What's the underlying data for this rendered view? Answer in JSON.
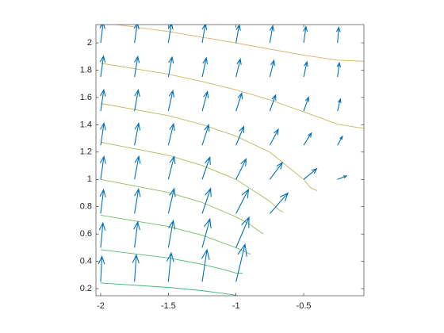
{
  "chart_data": {
    "type": "quiver",
    "xlim": [
      -2.035,
      -0.055
    ],
    "ylim": [
      0.148,
      2.134
    ],
    "xticks": [
      -2,
      -1.5,
      -1,
      -0.5
    ],
    "yticks": [
      0.2,
      0.4,
      0.6,
      0.8,
      1,
      1.2,
      1.4,
      1.6,
      1.8,
      2
    ],
    "box": true,
    "quiver": {
      "color": "#0072bd",
      "x": [
        -2,
        -2,
        -2,
        -2,
        -2,
        -2,
        -2,
        -2,
        -1.75,
        -1.75,
        -1.75,
        -1.75,
        -1.75,
        -1.75,
        -1.75,
        -1.75,
        -1.5,
        -1.5,
        -1.5,
        -1.5,
        -1.5,
        -1.5,
        -1.5,
        -1.5,
        -1.25,
        -1.25,
        -1.25,
        -1.25,
        -1.25,
        -1.25,
        -1.25,
        -1.25,
        -1,
        -1,
        -1,
        -1,
        -1,
        -1,
        -1,
        -1,
        -0.75,
        -0.75,
        -0.75,
        -0.75,
        -0.75,
        -0.75,
        -0.5,
        -0.5,
        -0.5,
        -0.5,
        -0.5,
        -0.25,
        -0.25,
        -0.25,
        -0.25,
        -0.25
      ],
      "y": [
        0.25,
        0.5,
        0.75,
        1,
        1.25,
        1.5,
        1.75,
        2,
        0.25,
        0.5,
        0.75,
        1,
        1.25,
        1.5,
        1.75,
        2,
        0.25,
        0.5,
        0.75,
        1,
        1.25,
        1.5,
        1.75,
        2,
        0.25,
        0.5,
        0.75,
        1,
        1.25,
        1.5,
        1.75,
        2,
        0.25,
        0.5,
        0.75,
        1,
        1.25,
        1.5,
        1.75,
        2,
        0.75,
        1,
        1.25,
        1.5,
        1.75,
        2,
        1,
        1.25,
        1.5,
        1.75,
        2,
        1,
        1.25,
        1.5,
        1.75,
        2
      ],
      "u": [
        0.061,
        0.111,
        0.144,
        0.16,
        0.162,
        0.154,
        0.14,
        0.125,
        0.09,
        0.159,
        0.2,
        0.212,
        0.205,
        0.186,
        0.163,
        0.14,
        0.14,
        0.24,
        0.284,
        0.284,
        0.258,
        0.222,
        0.186,
        0.154,
        0.237,
        0.381,
        0.415,
        0.381,
        0.32,
        0.258,
        0.205,
        0.162,
        0.443,
        0.64,
        0.614,
        0.5,
        0.381,
        0.284,
        0.212,
        0.16,
        0.889,
        0.614,
        0.415,
        0.284,
        0.2,
        0.144,
        0.64,
        0.381,
        0.24,
        0.159,
        0.111,
        0.443,
        0.237,
        0.14,
        0.09,
        0.061
      ],
      "v": [
        1.239,
        1.208,
        1.165,
        1.12,
        1.079,
        1.045,
        1.019,
        1,
        1.307,
        1.256,
        1.19,
        1.125,
        1.07,
        1.029,
        1,
        0.981,
        1.409,
        1.32,
        1.213,
        1.118,
        1.047,
        1,
        0.971,
        0.955,
        1.568,
        1.4,
        1.221,
        1.086,
        1,
        0.953,
        0.93,
        0.921,
        1.83,
        1.48,
        1.179,
        1,
        0.914,
        0.882,
        0.875,
        0.88,
        1,
        0.821,
        0.779,
        0.787,
        0.81,
        0.835,
        0.52,
        0.6,
        0.68,
        0.744,
        0.792,
        0.17,
        0.432,
        0.591,
        0.693,
        0.761
      ]
    },
    "contours": [
      {
        "color": "#3fb57e",
        "x": [
          -2,
          -1.5,
          -1.25,
          -1.1,
          -1
        ],
        "y": [
          0.241,
          0.209,
          0.185,
          0.166,
          0.152
        ]
      },
      {
        "color": "#55b96f",
        "x": [
          -2,
          -1.5,
          -1.25,
          -1.1,
          -1,
          -0.95
        ],
        "y": [
          0.485,
          0.425,
          0.378,
          0.342,
          0.314,
          0.312
        ]
      },
      {
        "color": "#6fbc62",
        "x": [
          -2,
          -1.5,
          -1.25,
          -1,
          -0.9,
          -0.89
        ],
        "y": [
          0.738,
          0.655,
          0.591,
          0.5,
          0.454,
          0.456
        ]
      },
      {
        "color": "#8cbd5a",
        "x": [
          -2,
          -1.5,
          -1.25,
          -1,
          -0.9,
          -0.8
        ],
        "y": [
          1,
          0.905,
          0.831,
          0.726,
          0.672,
          0.6
        ]
      },
      {
        "color": "#a6bb57",
        "x": [
          -2,
          -1.5,
          -1.25,
          -1,
          -0.75,
          -0.68,
          -0.65
        ],
        "y": [
          1.273,
          1.176,
          1.102,
          1,
          0.84,
          0.775,
          0.76
        ]
      },
      {
        "color": "#bdb85c",
        "x": [
          -2,
          -1.5,
          -1.25,
          -1,
          -0.75,
          -0.5,
          -0.45,
          -0.4
        ],
        "y": [
          1.557,
          1.467,
          1.402,
          1.317,
          1.2,
          1,
          0.94,
          0.917
        ]
      },
      {
        "color": "#ceb563",
        "x": [
          -2,
          -1.5,
          -1.25,
          -1,
          -0.75,
          -0.5,
          -0.25,
          -0.1,
          0
        ],
        "y": [
          1.851,
          1.771,
          1.717,
          1.656,
          1.583,
          1.495,
          1.405,
          1.38,
          1.37
        ]
      },
      {
        "color": "#dbb46c",
        "x": [
          -2,
          -1.5,
          -1,
          -0.5,
          -0.25,
          0
        ],
        "y": [
          2.15,
          2.083,
          1.999,
          1.91,
          1.874,
          1.863
        ]
      }
    ]
  }
}
